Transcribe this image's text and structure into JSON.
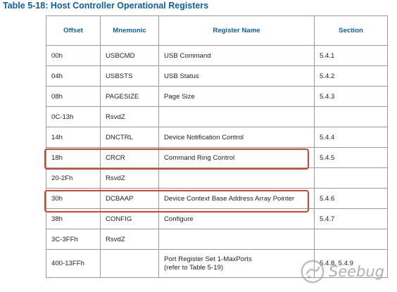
{
  "caption": "Table 5-18: Host Controller Operational Registers",
  "columns": {
    "offset": "Offset",
    "mnemonic": "Mnemonic",
    "name": "Register Name",
    "section": "Section"
  },
  "rows": [
    {
      "offset": "00h",
      "mnemonic": "USBCMD",
      "name": "USB Command",
      "section": "5.4.1"
    },
    {
      "offset": "04h",
      "mnemonic": "USBSTS",
      "name": "USB Status",
      "section": "5.4.2"
    },
    {
      "offset": "08h",
      "mnemonic": "PAGESIZE",
      "name": "Page Size",
      "section": "5.4.3"
    },
    {
      "offset": "0C-13h",
      "mnemonic": "RsvdZ",
      "name": "",
      "section": ""
    },
    {
      "offset": "14h",
      "mnemonic": "DNCTRL",
      "name": "Device Notification Control",
      "section": "5.4.4"
    },
    {
      "offset": "18h",
      "mnemonic": "CRCR",
      "name": "Command Ring Control",
      "section": "5.4.5"
    },
    {
      "offset": "20-2Fh",
      "mnemonic": "RsvdZ",
      "name": "",
      "section": ""
    },
    {
      "offset": "30h",
      "mnemonic": "DCBAAP",
      "name": "Device Context Base Address Array Pointer",
      "section": "5.4.6"
    },
    {
      "offset": "38h",
      "mnemonic": "CONFIG",
      "name": "Configure",
      "section": "5.4.7"
    },
    {
      "offset": "3C-3FFh",
      "mnemonic": "RsvdZ",
      "name": "",
      "section": ""
    },
    {
      "offset": "400-13FFh",
      "mnemonic": "",
      "name_line1": "Port Register Set 1-MaxPorts",
      "name_line2": "(refer to Table 5-19)",
      "section": "5.4.8, 5.4.9"
    }
  ],
  "highlight_color": "#d9432a",
  "watermark": {
    "text": "Seebug",
    "icon": "seebug-logo-icon"
  }
}
